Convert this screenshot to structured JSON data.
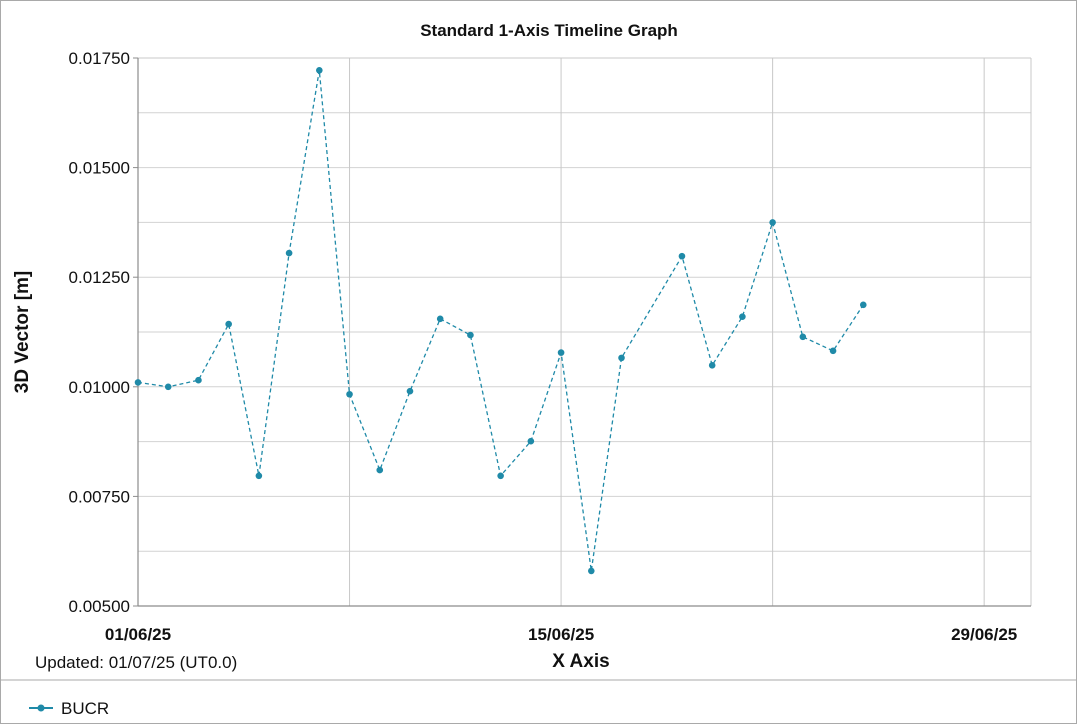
{
  "chart_data": {
    "type": "line",
    "title": "Standard 1-Axis Timeline Graph",
    "xlabel": "X Axis",
    "ylabel": "3D Vector [m]",
    "xlim": [
      "2025-06-01",
      "2025-06-30"
    ],
    "ylim": [
      0.005,
      0.0175
    ],
    "y_ticks": [
      "0.00500",
      "0.00750",
      "0.01000",
      "0.01250",
      "0.01500",
      "0.01750"
    ],
    "x_ticks": [
      {
        "date": "2025-06-01",
        "label": "01/06/25"
      },
      {
        "date": "2025-06-15",
        "label": "15/06/25"
      },
      {
        "date": "2025-06-29",
        "label": "29/06/25"
      }
    ],
    "x_gridlines": [
      "2025-06-01",
      "2025-06-08",
      "2025-06-15",
      "2025-06-22",
      "2025-06-29"
    ],
    "grid": true,
    "legend_position": "bottom-left",
    "series": [
      {
        "name": "BUCR",
        "color": "#1f8aa8",
        "line_style": "dashed",
        "x": [
          "2025-06-01",
          "2025-06-02",
          "2025-06-03",
          "2025-06-04",
          "2025-06-05",
          "2025-06-06",
          "2025-06-07",
          "2025-06-08",
          "2025-06-09",
          "2025-06-10",
          "2025-06-11",
          "2025-06-12",
          "2025-06-13",
          "2025-06-14",
          "2025-06-15",
          "2025-06-16",
          "2025-06-17",
          "2025-06-19",
          "2025-06-20",
          "2025-06-21",
          "2025-06-22",
          "2025-06-23",
          "2025-06-24",
          "2025-06-25"
        ],
        "y": [
          0.0101,
          0.01,
          0.01015,
          0.01143,
          0.00797,
          0.01305,
          0.01722,
          0.00983,
          0.0081,
          0.0099,
          0.01155,
          0.01118,
          0.00797,
          0.00876,
          0.01078,
          0.0058,
          0.01066,
          0.01298,
          0.01049,
          0.0116,
          0.01375,
          0.01114,
          0.01082,
          0.01187
        ]
      }
    ]
  },
  "footer": {
    "updated": "Updated: 01/07/25 (UT0.0)"
  }
}
